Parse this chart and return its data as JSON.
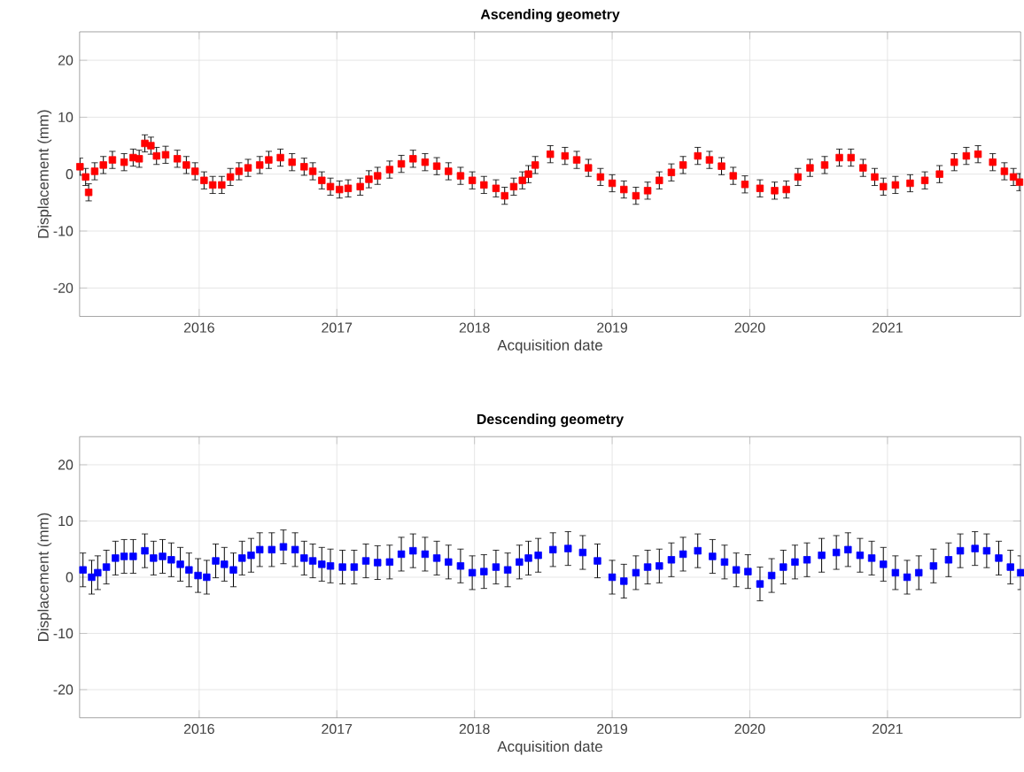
{
  "chart_data": [
    {
      "type": "scatter",
      "title": "Ascending geometry",
      "xlabel": "Acquisition date",
      "ylabel": "Displacement (mm)",
      "color": "#ff0000",
      "marker": "square",
      "grid": true,
      "xlim": [
        "2015-02-18",
        "2021-12-20"
      ],
      "ylim": [
        -25,
        25
      ],
      "xticks": [
        "2016",
        "2017",
        "2018",
        "2019",
        "2020",
        "2021"
      ],
      "yticks": [
        -20,
        -10,
        0,
        10,
        20
      ],
      "x": [
        "2015-02-19",
        "2015-03-06",
        "2015-03-14",
        "2015-03-30",
        "2015-04-22",
        "2015-05-16",
        "2015-06-16",
        "2015-07-10",
        "2015-07-26",
        "2015-08-10",
        "2015-08-26",
        "2015-09-10",
        "2015-10-04",
        "2015-11-04",
        "2015-11-28",
        "2015-12-21",
        "2016-01-14",
        "2016-02-06",
        "2016-03-01",
        "2016-03-24",
        "2016-04-16",
        "2016-05-10",
        "2016-06-10",
        "2016-07-04",
        "2016-08-04",
        "2016-09-04",
        "2016-10-06",
        "2016-10-29",
        "2016-11-22",
        "2016-12-15",
        "2017-01-08",
        "2017-01-31",
        "2017-03-04",
        "2017-03-27",
        "2017-04-19",
        "2017-05-21",
        "2017-06-21",
        "2017-07-22",
        "2017-08-23",
        "2017-09-23",
        "2017-10-24",
        "2017-11-25",
        "2017-12-26",
        "2018-01-26",
        "2018-02-27",
        "2018-03-22",
        "2018-04-15",
        "2018-05-08",
        "2018-05-24",
        "2018-06-11",
        "2018-07-21",
        "2018-08-29",
        "2018-09-29",
        "2018-10-30",
        "2018-12-01",
        "2019-01-01",
        "2019-02-01",
        "2019-03-05",
        "2019-04-05",
        "2019-05-06",
        "2019-06-07",
        "2019-07-08",
        "2019-08-16",
        "2019-09-16",
        "2019-10-18",
        "2019-11-18",
        "2019-12-19",
        "2020-01-28",
        "2020-03-07",
        "2020-04-07",
        "2020-05-08",
        "2020-06-09",
        "2020-07-18",
        "2020-08-26",
        "2020-09-26",
        "2020-10-28",
        "2020-11-28",
        "2020-12-21",
        "2021-01-22",
        "2021-03-02",
        "2021-04-10",
        "2021-05-19",
        "2021-06-27",
        "2021-07-29",
        "2021-08-29",
        "2021-10-07",
        "2021-11-07",
        "2021-12-01",
        "2021-12-17"
      ],
      "values": [
        1.3,
        -0.5,
        -3.2,
        0.5,
        1.6,
        2.5,
        2.1,
        2.9,
        2.7,
        5.4,
        5.0,
        3.2,
        3.4,
        2.7,
        1.6,
        0.5,
        -1.1,
        -1.9,
        -1.9,
        -0.5,
        0.5,
        1.1,
        1.6,
        2.5,
        2.9,
        2.1,
        1.3,
        0.5,
        -1.1,
        -2.2,
        -2.7,
        -2.5,
        -2.2,
        -0.9,
        -0.3,
        0.8,
        1.8,
        2.7,
        2.1,
        1.4,
        0.5,
        -0.3,
        -1.1,
        -1.9,
        -2.5,
        -3.8,
        -2.2,
        -1.1,
        0.0,
        1.6,
        3.5,
        3.2,
        2.5,
        1.1,
        -0.5,
        -1.6,
        -2.7,
        -3.8,
        -2.9,
        -1.1,
        0.3,
        1.6,
        3.2,
        2.5,
        1.4,
        -0.3,
        -1.8,
        -2.5,
        -2.9,
        -2.7,
        -0.5,
        1.1,
        1.6,
        2.9,
        2.9,
        1.1,
        -0.5,
        -2.2,
        -1.9,
        -1.6,
        -1.1,
        0.0,
        2.1,
        3.2,
        3.5,
        2.1,
        0.5,
        -0.5,
        -1.4
      ],
      "errors": [
        1.5,
        1.5,
        1.5,
        1.5,
        1.5,
        1.5,
        1.5,
        1.5,
        1.5,
        1.5,
        1.5,
        1.5,
        1.5,
        1.5,
        1.5,
        1.5,
        1.5,
        1.5,
        1.5,
        1.5,
        1.5,
        1.5,
        1.5,
        1.5,
        1.5,
        1.5,
        1.5,
        1.5,
        1.5,
        1.5,
        1.5,
        1.5,
        1.5,
        1.5,
        1.5,
        1.5,
        1.5,
        1.5,
        1.5,
        1.5,
        1.5,
        1.5,
        1.5,
        1.5,
        1.5,
        1.5,
        1.5,
        1.5,
        1.5,
        1.5,
        1.5,
        1.5,
        1.5,
        1.5,
        1.5,
        1.5,
        1.5,
        1.5,
        1.5,
        1.5,
        1.5,
        1.5,
        1.5,
        1.5,
        1.5,
        1.5,
        1.5,
        1.5,
        1.5,
        1.5,
        1.5,
        1.5,
        1.5,
        1.5,
        1.5,
        1.5,
        1.5,
        1.5,
        1.5,
        1.5,
        1.5,
        1.5,
        1.5,
        1.5,
        1.5,
        1.5,
        1.5,
        1.5,
        1.5
      ]
    },
    {
      "type": "scatter",
      "title": "Descending geometry",
      "xlabel": "Acquisition date",
      "ylabel": "Displacement (mm)",
      "color": "#0000ff",
      "marker": "square",
      "grid": true,
      "xlim": [
        "2015-02-18",
        "2021-12-20"
      ],
      "ylim": [
        -25,
        25
      ],
      "xticks": [
        "2016",
        "2017",
        "2018",
        "2019",
        "2020",
        "2021"
      ],
      "yticks": [
        -20,
        -10,
        0,
        10,
        20
      ],
      "x": [
        "2015-02-27",
        "2015-03-22",
        "2015-04-07",
        "2015-04-30",
        "2015-05-24",
        "2015-06-16",
        "2015-07-10",
        "2015-08-10",
        "2015-09-02",
        "2015-09-26",
        "2015-10-19",
        "2015-11-12",
        "2015-12-05",
        "2015-12-29",
        "2016-01-21",
        "2016-02-14",
        "2016-03-08",
        "2016-04-01",
        "2016-04-24",
        "2016-05-18",
        "2016-06-10",
        "2016-07-12",
        "2016-08-12",
        "2016-09-12",
        "2016-10-06",
        "2016-10-29",
        "2016-11-22",
        "2016-12-15",
        "2017-01-16",
        "2017-02-16",
        "2017-03-19",
        "2017-04-19",
        "2017-05-21",
        "2017-06-21",
        "2017-07-22",
        "2017-08-23",
        "2017-09-23",
        "2017-10-24",
        "2017-11-25",
        "2017-12-26",
        "2018-01-26",
        "2018-02-27",
        "2018-03-30",
        "2018-04-30",
        "2018-05-24",
        "2018-06-19",
        "2018-07-28",
        "2018-09-06",
        "2018-10-15",
        "2018-11-23",
        "2019-01-01",
        "2019-02-01",
        "2019-03-05",
        "2019-04-05",
        "2019-05-06",
        "2019-06-07",
        "2019-07-08",
        "2019-08-16",
        "2019-09-24",
        "2019-10-26",
        "2019-11-26",
        "2019-12-27",
        "2020-01-28",
        "2020-02-28",
        "2020-03-30",
        "2020-04-30",
        "2020-06-01",
        "2020-07-10",
        "2020-08-18",
        "2020-09-18",
        "2020-10-20",
        "2020-11-20",
        "2020-12-21",
        "2021-01-22",
        "2021-02-22",
        "2021-03-25",
        "2021-05-03",
        "2021-06-12",
        "2021-07-13",
        "2021-08-21",
        "2021-09-21",
        "2021-10-23",
        "2021-11-23",
        "2021-12-20"
      ],
      "values": [
        1.3,
        0.0,
        0.8,
        1.8,
        3.4,
        3.7,
        3.7,
        4.7,
        3.4,
        3.7,
        3.1,
        2.3,
        1.3,
        0.3,
        0.0,
        2.9,
        2.3,
        1.3,
        3.4,
        3.9,
        4.9,
        4.9,
        5.4,
        4.9,
        3.4,
        2.9,
        2.3,
        2.0,
        1.8,
        1.8,
        2.9,
        2.6,
        2.7,
        4.1,
        4.7,
        4.1,
        3.4,
        2.7,
        2.0,
        0.8,
        1.0,
        1.8,
        1.3,
        2.7,
        3.4,
        3.9,
        4.9,
        5.1,
        4.4,
        2.9,
        0.0,
        -0.7,
        0.8,
        1.8,
        2.0,
        3.1,
        4.1,
        4.7,
        3.7,
        2.7,
        1.3,
        1.0,
        -1.2,
        0.3,
        1.8,
        2.7,
        3.1,
        3.9,
        4.4,
        4.9,
        3.9,
        3.4,
        2.3,
        0.8,
        0.0,
        0.8,
        2.0,
        3.1,
        4.7,
        5.1,
        4.7,
        3.4,
        1.8,
        0.8
      ],
      "errors": [
        3,
        3,
        3,
        3,
        3,
        3,
        3,
        3,
        3,
        3,
        3,
        3,
        3,
        3,
        3,
        3,
        3,
        3,
        3,
        3,
        3,
        3,
        3,
        3,
        3,
        3,
        3,
        3,
        3,
        3,
        3,
        3,
        3,
        3,
        3,
        3,
        3,
        3,
        3,
        3,
        3,
        3,
        3,
        3,
        3,
        3,
        3,
        3,
        3,
        3,
        3,
        3,
        3,
        3,
        3,
        3,
        3,
        3,
        3,
        3,
        3,
        3,
        3,
        3,
        3,
        3,
        3,
        3,
        3,
        3,
        3,
        3,
        3,
        3,
        3,
        3,
        3,
        3,
        3,
        3,
        3,
        3,
        3,
        3
      ]
    }
  ]
}
